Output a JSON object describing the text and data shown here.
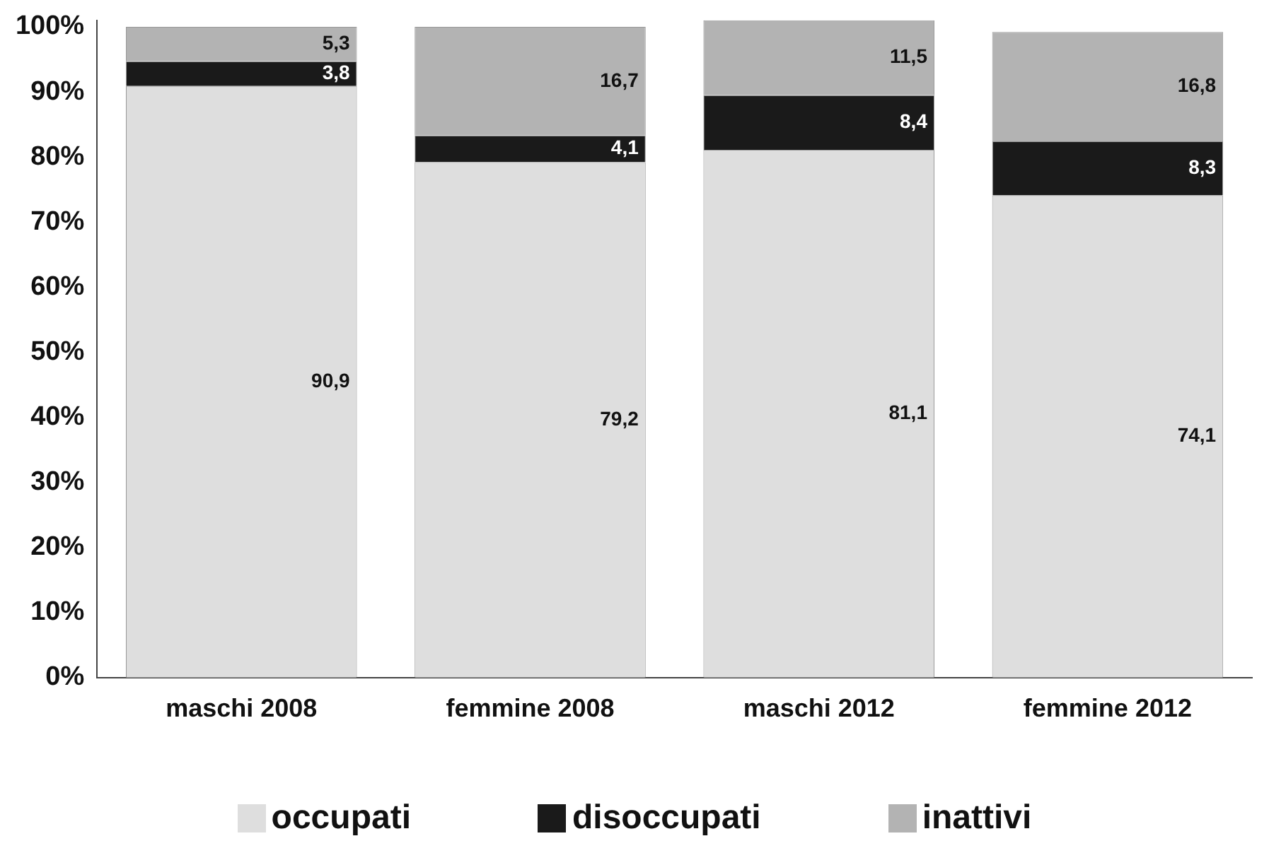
{
  "chart_data": {
    "type": "bar",
    "stacked": true,
    "categories": [
      "maschi 2008",
      "femmine 2008",
      "maschi 2012",
      "femmine 2012"
    ],
    "series": [
      {
        "name": "occupati",
        "color": "#dedede",
        "values": [
          90.9,
          79.2,
          81.1,
          74.1
        ],
        "value_labels": [
          "90,9",
          "79,2",
          "81,1",
          "74,1"
        ]
      },
      {
        "name": "disoccupati",
        "color": "#1a1a1a",
        "values": [
          3.8,
          4.1,
          8.4,
          8.3
        ],
        "value_labels": [
          "3,8",
          "4,1",
          "8,4",
          "8,3"
        ]
      },
      {
        "name": "inattivi",
        "color": "#b3b3b3",
        "values": [
          5.3,
          16.7,
          11.5,
          16.8
        ],
        "value_labels": [
          "5,3",
          "16,7",
          "11,5",
          "16,8"
        ]
      }
    ],
    "ylim": [
      0,
      101
    ],
    "yticks": [
      {
        "value": 0,
        "label": "0%"
      },
      {
        "value": 10,
        "label": "10%"
      },
      {
        "value": 20,
        "label": "20%"
      },
      {
        "value": 30,
        "label": "30%"
      },
      {
        "value": 40,
        "label": "40%"
      },
      {
        "value": 50,
        "label": "50%"
      },
      {
        "value": 60,
        "label": "60%"
      },
      {
        "value": 70,
        "label": "70%"
      },
      {
        "value": 80,
        "label": "80%"
      },
      {
        "value": 90,
        "label": "90%"
      },
      {
        "value": 100,
        "label": "100%"
      }
    ],
    "legend": "bottom"
  }
}
